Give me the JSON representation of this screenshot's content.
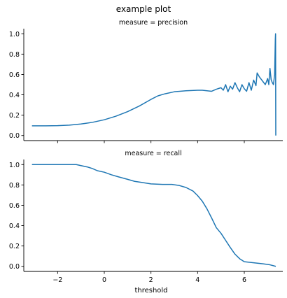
{
  "chart_data": {
    "type": "line",
    "title": "example plot",
    "xlabel": "threshold",
    "xlim": [
      -3.45,
      7.65
    ],
    "x_ticks": [
      -2,
      0,
      2,
      4,
      6
    ],
    "ylim": [
      -0.05,
      1.05
    ],
    "y_ticks": [
      0.0,
      0.2,
      0.4,
      0.6,
      0.8,
      1.0
    ],
    "color": "#1f77b4",
    "grid": false,
    "panels": [
      {
        "title": "measure = precision",
        "series": [
          {
            "points": [
              [
                -3.1,
                0.095
              ],
              [
                -2.5,
                0.095
              ],
              [
                -2.0,
                0.097
              ],
              [
                -1.5,
                0.102
              ],
              [
                -1.0,
                0.113
              ],
              [
                -0.5,
                0.13
              ],
              [
                0.0,
                0.155
              ],
              [
                0.5,
                0.19
              ],
              [
                1.0,
                0.235
              ],
              [
                1.5,
                0.29
              ],
              [
                2.0,
                0.355
              ],
              [
                2.3,
                0.39
              ],
              [
                2.6,
                0.41
              ],
              [
                3.0,
                0.43
              ],
              [
                3.5,
                0.44
              ],
              [
                4.0,
                0.445
              ],
              [
                4.2,
                0.445
              ],
              [
                4.4,
                0.44
              ],
              [
                4.6,
                0.435
              ],
              [
                4.8,
                0.455
              ],
              [
                5.0,
                0.47
              ],
              [
                5.1,
                0.445
              ],
              [
                5.2,
                0.5
              ],
              [
                5.3,
                0.43
              ],
              [
                5.4,
                0.485
              ],
              [
                5.5,
                0.455
              ],
              [
                5.6,
                0.52
              ],
              [
                5.7,
                0.47
              ],
              [
                5.8,
                0.43
              ],
              [
                5.9,
                0.5
              ],
              [
                6.0,
                0.46
              ],
              [
                6.1,
                0.435
              ],
              [
                6.2,
                0.52
              ],
              [
                6.3,
                0.445
              ],
              [
                6.4,
                0.545
              ],
              [
                6.5,
                0.49
              ],
              [
                6.55,
                0.615
              ],
              [
                6.65,
                0.575
              ],
              [
                6.8,
                0.53
              ],
              [
                6.9,
                0.5
              ],
              [
                7.0,
                0.56
              ],
              [
                7.05,
                0.5
              ],
              [
                7.1,
                0.66
              ],
              [
                7.15,
                0.55
              ],
              [
                7.2,
                0.52
              ],
              [
                7.25,
                0.5
              ],
              [
                7.3,
                0.6
              ],
              [
                7.33,
                0.95
              ],
              [
                7.34,
                1.0
              ],
              [
                7.35,
                0.0
              ]
            ]
          }
        ]
      },
      {
        "title": "measure = recall",
        "series": [
          {
            "points": [
              [
                -3.1,
                1.0
              ],
              [
                -2.0,
                1.0
              ],
              [
                -1.2,
                1.0
              ],
              [
                -1.0,
                0.99
              ],
              [
                -0.7,
                0.975
              ],
              [
                -0.5,
                0.96
              ],
              [
                -0.3,
                0.94
              ],
              [
                0.0,
                0.925
              ],
              [
                0.3,
                0.9
              ],
              [
                0.6,
                0.88
              ],
              [
                1.0,
                0.855
              ],
              [
                1.3,
                0.835
              ],
              [
                1.6,
                0.825
              ],
              [
                2.0,
                0.81
              ],
              [
                2.5,
                0.805
              ],
              [
                2.9,
                0.805
              ],
              [
                3.2,
                0.795
              ],
              [
                3.5,
                0.775
              ],
              [
                3.8,
                0.74
              ],
              [
                4.0,
                0.695
              ],
              [
                4.2,
                0.64
              ],
              [
                4.4,
                0.565
              ],
              [
                4.6,
                0.475
              ],
              [
                4.8,
                0.38
              ],
              [
                5.0,
                0.325
              ],
              [
                5.2,
                0.255
              ],
              [
                5.4,
                0.185
              ],
              [
                5.6,
                0.12
              ],
              [
                5.8,
                0.075
              ],
              [
                6.0,
                0.045
              ],
              [
                6.4,
                0.035
              ],
              [
                6.8,
                0.025
              ],
              [
                7.1,
                0.015
              ],
              [
                7.35,
                0.0
              ]
            ]
          }
        ]
      }
    ]
  }
}
